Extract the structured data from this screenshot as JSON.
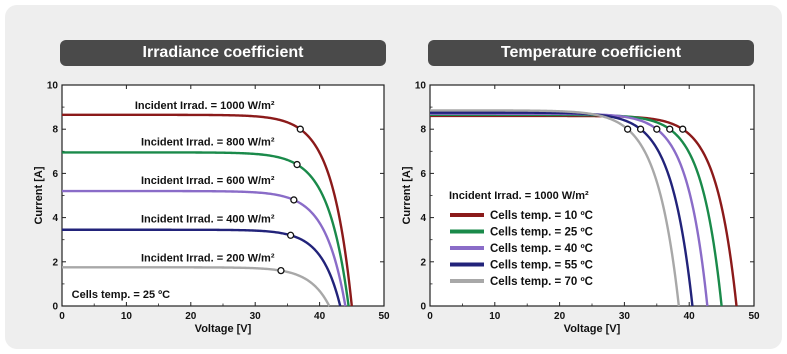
{
  "chart_data": [
    {
      "type": "line",
      "title": "Irradiance coefficient",
      "xlabel": "Voltage [V]",
      "ylabel": "Current [A]",
      "xlim": [
        0,
        50
      ],
      "ylim": [
        0,
        10
      ],
      "xticks": [
        0,
        10,
        20,
        30,
        40,
        50
      ],
      "yticks": [
        0,
        2,
        4,
        6,
        8,
        10
      ],
      "grid": false,
      "annotation": "Cells temp. = 25 ºC",
      "series": [
        {
          "name": "Incident Irrad. = 1000 W/m²",
          "color": "#8b1a1a",
          "isc": 8.65,
          "voc": 45.0,
          "mpp": [
            37.0,
            8.0
          ]
        },
        {
          "name": "Incident Irrad. = 800 W/m²",
          "color": "#1a8a4a",
          "isc": 6.95,
          "voc": 44.5,
          "mpp": [
            36.5,
            6.4
          ]
        },
        {
          "name": "Incident Irrad. = 600 W/m²",
          "color": "#8a6cc8",
          "isc": 5.2,
          "voc": 44.0,
          "mpp": [
            36.0,
            4.8
          ]
        },
        {
          "name": "Incident Irrad. = 400 W/m²",
          "color": "#22237a",
          "isc": 3.45,
          "voc": 43.2,
          "mpp": [
            35.5,
            3.2
          ]
        },
        {
          "name": "Incident Irrad. = 200 W/m²",
          "color": "#a8a8a8",
          "isc": 1.75,
          "voc": 41.5,
          "mpp": [
            34.0,
            1.6
          ]
        }
      ]
    },
    {
      "type": "line",
      "title": "Temperature coefficient",
      "xlabel": "Voltage [V]",
      "ylabel": "Current [A]",
      "xlim": [
        0,
        50
      ],
      "ylim": [
        0,
        10
      ],
      "xticks": [
        0,
        10,
        20,
        30,
        40,
        50
      ],
      "yticks": [
        0,
        2,
        4,
        6,
        8,
        10
      ],
      "grid": false,
      "legend_title": "Incident Irrad. = 1000 W/m²",
      "legend_position": "lower-left",
      "series": [
        {
          "name": "Cells temp.  = 10 ºC",
          "color": "#8b1a1a",
          "isc": 8.6,
          "voc": 47.3,
          "mpp": [
            39.0,
            8.0
          ]
        },
        {
          "name": "Cells temp.  = 25 ºC",
          "color": "#1a8a4a",
          "isc": 8.65,
          "voc": 45.0,
          "mpp": [
            37.0,
            8.0
          ]
        },
        {
          "name": "Cells temp.  = 40 ºC",
          "color": "#8a6cc8",
          "isc": 8.7,
          "voc": 42.8,
          "mpp": [
            35.0,
            8.0
          ]
        },
        {
          "name": "Cells temp.  = 55 ºC",
          "color": "#22237a",
          "isc": 8.75,
          "voc": 40.5,
          "mpp": [
            32.5,
            8.0
          ]
        },
        {
          "name": "Cells temp.  = 70 ºC",
          "color": "#a8a8a8",
          "isc": 8.85,
          "voc": 38.4,
          "mpp": [
            30.5,
            8.0
          ]
        }
      ]
    }
  ]
}
